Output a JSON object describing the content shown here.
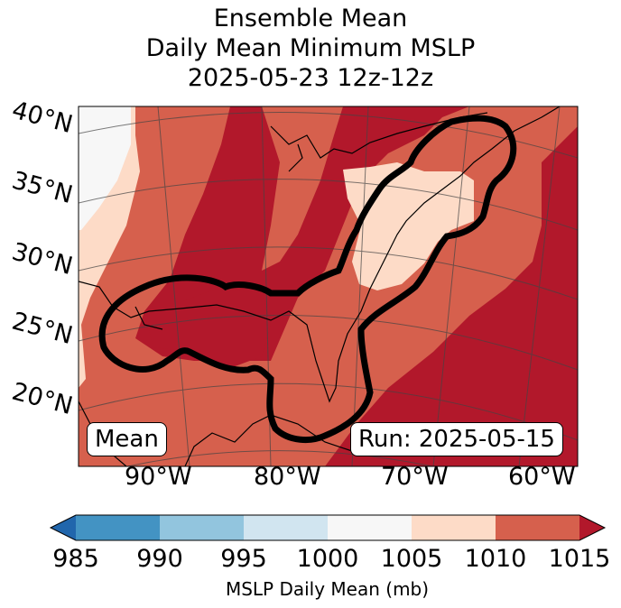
{
  "title": {
    "line1": "Ensemble Mean",
    "line2": "Daily Mean Minimum MSLP",
    "line3": "2025-05-23 12z-12z"
  },
  "map": {
    "lat_labels": [
      "40°N",
      "35°N",
      "30°N",
      "25°N",
      "20°N"
    ],
    "lon_labels": [
      "90°W",
      "80°W",
      "70°W",
      "60°W"
    ],
    "badge_left": "Mean",
    "badge_right": "Run: 2025-05-15"
  },
  "colorbar": {
    "ticks": [
      "985",
      "990",
      "995",
      "1000",
      "1005",
      "1010",
      "1015"
    ],
    "label": "MSLP Daily Mean (mb)",
    "colors": {
      "below": "#2166ac",
      "985-990": "#4393c3",
      "990-995": "#92c5de",
      "995-1000": "#d1e5f0",
      "1000-1005": "#f7f7f7",
      "1005-1010": "#fddbc7",
      "1010-1015": "#d6604d",
      "above": "#b2182b"
    }
  }
}
